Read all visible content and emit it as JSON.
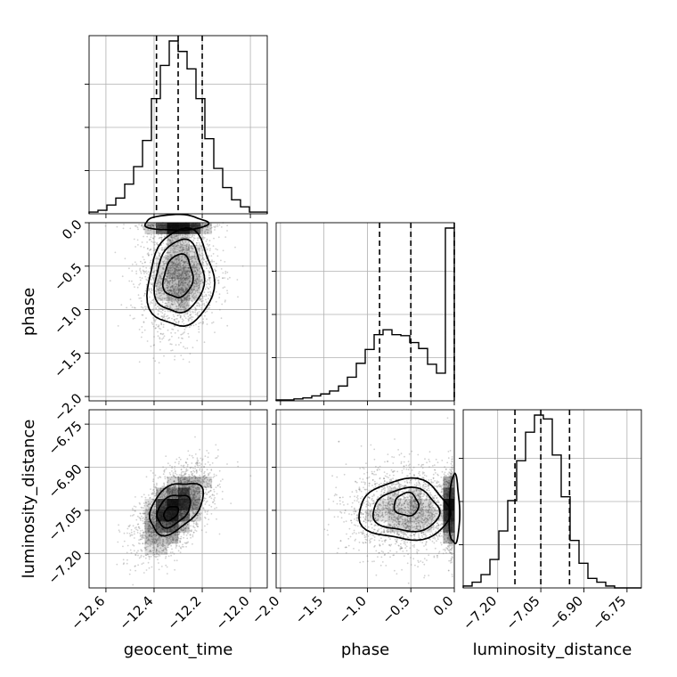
{
  "chart_data": {
    "type": "corner",
    "parameters": [
      "geocent_time",
      "phase",
      "luminosity_distance"
    ],
    "axes": {
      "geocent_time": {
        "range": [
          -12.67,
          -11.93
        ],
        "ticks": [
          -12.6,
          -12.4,
          -12.2,
          -12.0
        ],
        "tick_labels": [
          "−12.6",
          "−12.4",
          "−12.2",
          "−12.0"
        ],
        "quantiles": [
          -12.39,
          -12.3,
          -12.2
        ]
      },
      "phase": {
        "range": [
          -2.05,
          0.0
        ],
        "ticks": [
          -2.0,
          -1.5,
          -1.0,
          -0.5,
          0.0
        ],
        "tick_labels": [
          "−2.0",
          "−1.5",
          "−1.0",
          "−0.5",
          "0.0"
        ],
        "quantiles": [
          -0.86,
          -0.5,
          0.0
        ]
      },
      "luminosity_distance": {
        "range": [
          -7.32,
          -6.7
        ],
        "ticks": [
          -7.2,
          -7.05,
          -6.9,
          -6.75
        ],
        "tick_labels": [
          "−7.20",
          "−7.05",
          "−6.90",
          "−6.75"
        ],
        "quantiles": [
          -7.14,
          -7.05,
          -6.95
        ]
      }
    },
    "histograms": {
      "geocent_time": {
        "bins": [
          -12.67,
          -12.633,
          -12.596,
          -12.559,
          -12.522,
          -12.485,
          -12.448,
          -12.411,
          -12.374,
          -12.337,
          -12.3,
          -12.263,
          -12.226,
          -12.189,
          -12.152,
          -12.115,
          -12.078,
          -12.041,
          -12.004,
          -11.967,
          -11.93
        ],
        "counts": [
          1,
          2,
          5,
          9,
          17,
          27,
          42,
          66,
          85,
          99,
          93,
          83,
          66,
          43,
          26,
          15,
          8,
          4,
          1,
          1
        ]
      },
      "phase": {
        "bins": [
          -2.05,
          -1.9475,
          -1.845,
          -1.7425,
          -1.64,
          -1.5375,
          -1.435,
          -1.3325,
          -1.23,
          -1.1275,
          -1.025,
          -0.9225,
          -0.82,
          -0.7175,
          -0.615,
          -0.5125,
          -0.41,
          -0.3075,
          -0.205,
          -0.1025,
          0.0
        ],
        "counts": [
          1,
          1,
          2,
          3,
          5,
          7,
          10,
          15,
          24,
          38,
          52,
          67,
          72,
          67,
          66,
          59,
          53,
          37,
          28,
          175
        ]
      },
      "luminosity_distance": {
        "bins": [
          -7.32,
          -7.289,
          -7.258,
          -7.227,
          -7.196,
          -7.165,
          -7.134,
          -7.103,
          -7.072,
          -7.041,
          -7.01,
          -6.979,
          -6.948,
          -6.917,
          -6.886,
          -6.855,
          -6.824,
          -6.793,
          -6.762,
          -6.731,
          -6.7
        ],
        "counts": [
          1,
          3,
          7,
          15,
          30,
          46,
          67,
          82,
          91,
          89,
          70,
          48,
          25,
          13,
          5,
          3,
          1,
          0,
          0,
          0
        ]
      }
    },
    "contour_levels": [
      "0.5",
      "1.0",
      "1.5",
      "2.0 sigma"
    ],
    "pairs": [
      {
        "x": "geocent_time",
        "y": "phase",
        "center": [
          -12.3,
          -0.62
        ]
      },
      {
        "x": "geocent_time",
        "y": "luminosity_distance",
        "center": [
          -12.32,
          -7.05
        ],
        "correlation": 0.55
      },
      {
        "x": "phase",
        "y": "luminosity_distance",
        "center": [
          -0.55,
          -7.05
        ]
      }
    ],
    "grid": true,
    "title": "",
    "colors": {
      "line": "#000000",
      "grid": "#b0b0b0",
      "density": "#000000"
    }
  }
}
